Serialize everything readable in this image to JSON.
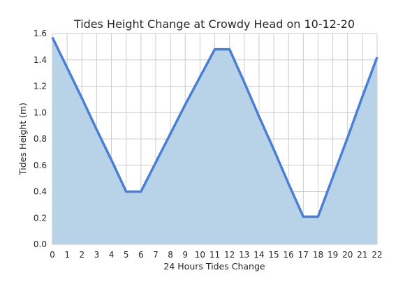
{
  "chart_data": {
    "type": "area",
    "title": "Tides Height Change at Crowdy Head on 10-12-20",
    "xlabel": "24 Hours Tides Change",
    "ylabel": "Tides Height (m)",
    "x": [
      0,
      1,
      2,
      3,
      4,
      5,
      6,
      7,
      8,
      9,
      10,
      11,
      12,
      13,
      14,
      15,
      16,
      17,
      18,
      19,
      20,
      21,
      22
    ],
    "y": [
      1.57,
      1.34,
      1.11,
      0.87,
      0.64,
      0.4,
      0.4,
      0.62,
      0.84,
      1.06,
      1.27,
      1.48,
      1.48,
      1.23,
      0.97,
      0.72,
      0.46,
      0.21,
      0.21,
      0.51,
      0.81,
      1.12,
      1.42
    ],
    "xlim": [
      0,
      22
    ],
    "ylim": [
      0,
      1.6
    ],
    "x_ticks": [
      "0",
      "1",
      "2",
      "3",
      "4",
      "5",
      "6",
      "7",
      "8",
      "9",
      "10",
      "11",
      "12",
      "13",
      "14",
      "15",
      "16",
      "17",
      "18",
      "19",
      "20",
      "21",
      "22"
    ],
    "y_ticks": [
      "0.0",
      "0.2",
      "0.4",
      "0.6",
      "0.8",
      "1.0",
      "1.2",
      "1.4",
      "1.6"
    ],
    "grid": true,
    "line_color": "#4a7fd4",
    "fill_color": "#b8d3e8",
    "grid_color": "#cccccc"
  }
}
